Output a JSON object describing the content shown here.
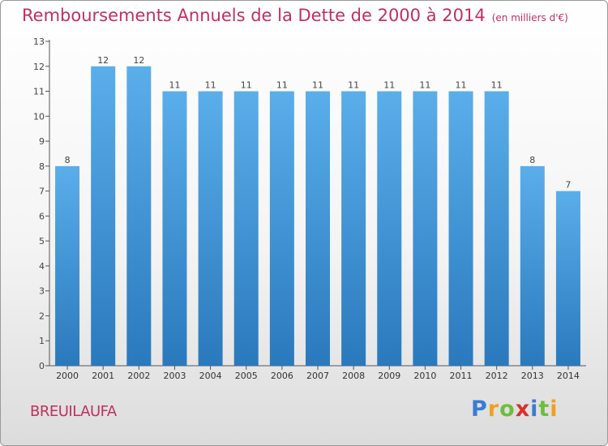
{
  "title": "Remboursements Annuels de la Dette de 2000 à 2014",
  "unit_note": "(en milliers d'€)",
  "town": "BREUILAUFA",
  "brand": {
    "letters": [
      "P",
      "r",
      "o",
      "x",
      "i",
      "t",
      "i"
    ],
    "colors": [
      "#3a7bd5",
      "#f0a020",
      "#6cbf3a",
      "#d8302e",
      "#3a7bd5",
      "#6cbf3a",
      "#f0a020"
    ]
  },
  "colors": {
    "bar_light": "#5aaeea",
    "bar_dark": "#2a79bd",
    "text_accent": "#c0305e",
    "axis": "#555555"
  },
  "chart_data": {
    "type": "bar",
    "categories": [
      "2000",
      "2001",
      "2002",
      "2003",
      "2004",
      "2005",
      "2006",
      "2007",
      "2008",
      "2009",
      "2010",
      "2011",
      "2012",
      "2013",
      "2014"
    ],
    "values": [
      8,
      12,
      12,
      11,
      11,
      11,
      11,
      11,
      11,
      11,
      11,
      11,
      11,
      8,
      7
    ],
    "data_labels": [
      "8",
      "12",
      "12",
      "11",
      "11",
      "11",
      "11",
      "11",
      "11",
      "11",
      "11",
      "11",
      "11",
      "8",
      "7"
    ],
    "yticks": [
      0,
      1,
      2,
      3,
      4,
      5,
      6,
      7,
      8,
      9,
      10,
      11,
      12,
      13
    ],
    "ylim": [
      0,
      13
    ],
    "title": "Remboursements Annuels de la Dette de 2000 à 2014",
    "xlabel": "",
    "ylabel": "",
    "grid": false
  }
}
